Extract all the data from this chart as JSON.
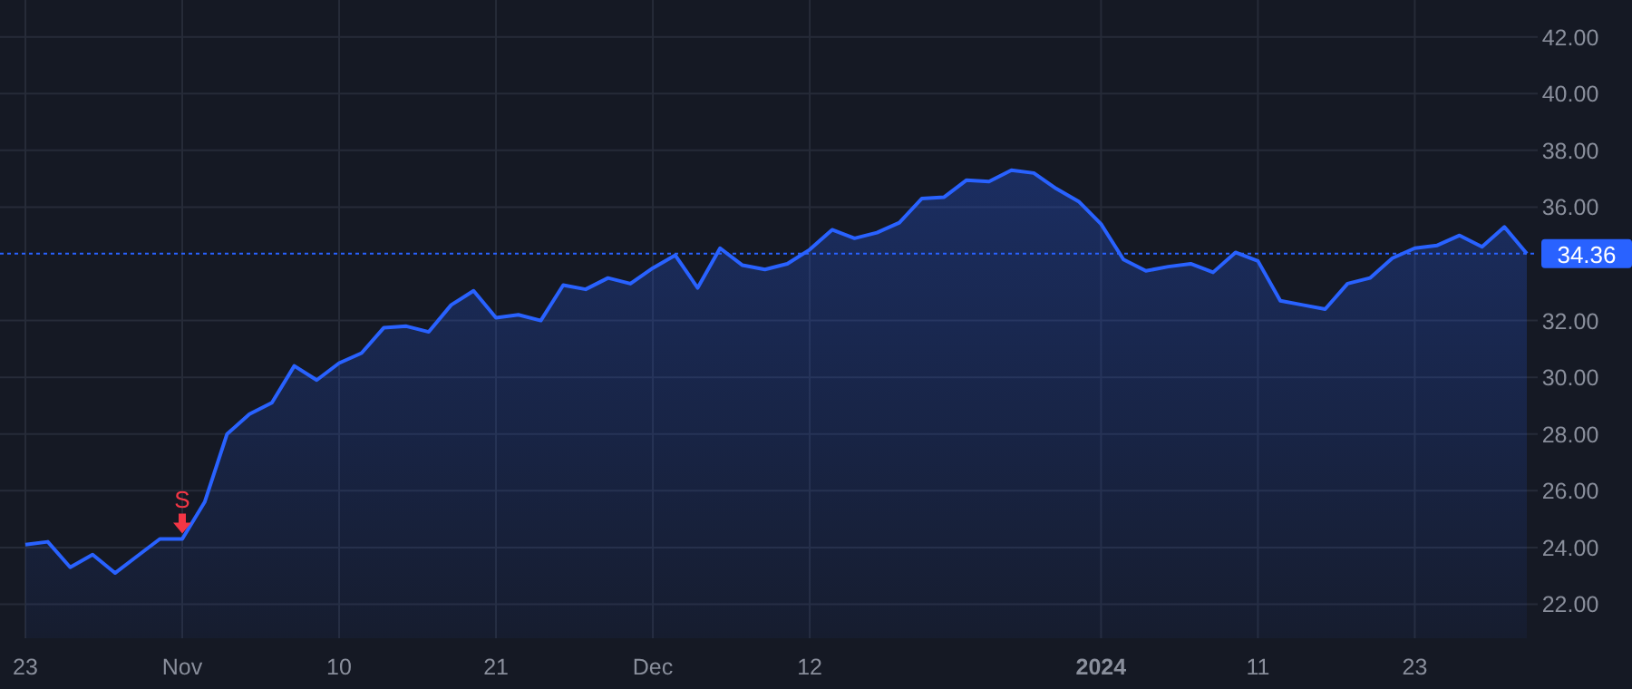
{
  "chart_data": {
    "type": "area",
    "categories": [
      "23",
      null,
      null,
      null,
      null,
      null,
      null,
      "Nov",
      null,
      null,
      null,
      null,
      null,
      null,
      "10",
      null,
      null,
      null,
      null,
      null,
      null,
      "21",
      null,
      null,
      null,
      null,
      null,
      null,
      "Dec",
      null,
      null,
      null,
      null,
      null,
      null,
      "12",
      null,
      null,
      null,
      null,
      null,
      null,
      null,
      null,
      null,
      null,
      null,
      null,
      "2024",
      null,
      null,
      null,
      null,
      null,
      null,
      "11",
      null,
      null,
      null,
      null,
      null,
      null,
      "23",
      null,
      null,
      null,
      null,
      null
    ],
    "series": [
      {
        "color": "#2962ff",
        "values": [
          24.1,
          24.2,
          23.3,
          23.75,
          23.1,
          23.7,
          24.3,
          24.3,
          25.6,
          28.0,
          28.7,
          29.1,
          30.4,
          29.9,
          30.5,
          30.85,
          31.75,
          31.8,
          31.6,
          32.55,
          33.05,
          32.1,
          32.2,
          32.0,
          33.25,
          33.1,
          33.5,
          33.3,
          33.85,
          34.3,
          33.15,
          34.55,
          33.95,
          33.8,
          34.0,
          34.5,
          35.2,
          34.9,
          35.1,
          35.45,
          36.3,
          36.35,
          36.95,
          36.9,
          37.3,
          37.2,
          36.65,
          36.2,
          35.4,
          34.15,
          33.75,
          33.9,
          34.0,
          33.7,
          34.4,
          34.1,
          32.7,
          32.55,
          32.4,
          33.3,
          33.5,
          34.2,
          34.55,
          34.65,
          35.0,
          34.6,
          35.3,
          34.36
        ]
      }
    ],
    "ylim": [
      20.8,
      43.3
    ],
    "yticks": [
      {
        "value": 22,
        "label": "22.00"
      },
      {
        "value": 24,
        "label": "24.00"
      },
      {
        "value": 26,
        "label": "26.00"
      },
      {
        "value": 28,
        "label": "28.00"
      },
      {
        "value": 30,
        "label": "30.00"
      },
      {
        "value": 32,
        "label": "32.00"
      },
      {
        "value": 36,
        "label": "36.00"
      },
      {
        "value": 38,
        "label": "38.00"
      },
      {
        "value": 40,
        "label": "40.00"
      },
      {
        "value": 42,
        "label": "42.00"
      }
    ],
    "grid": true,
    "marker": "none",
    "ref_lines": [
      {
        "axis": "y",
        "value": 34.36,
        "label": "34.36",
        "color": "#2962ff",
        "line_style": "dotted"
      }
    ],
    "annotations": [
      {
        "text": "S",
        "x": "Nov",
        "y": 24.3
      }
    ]
  }
}
